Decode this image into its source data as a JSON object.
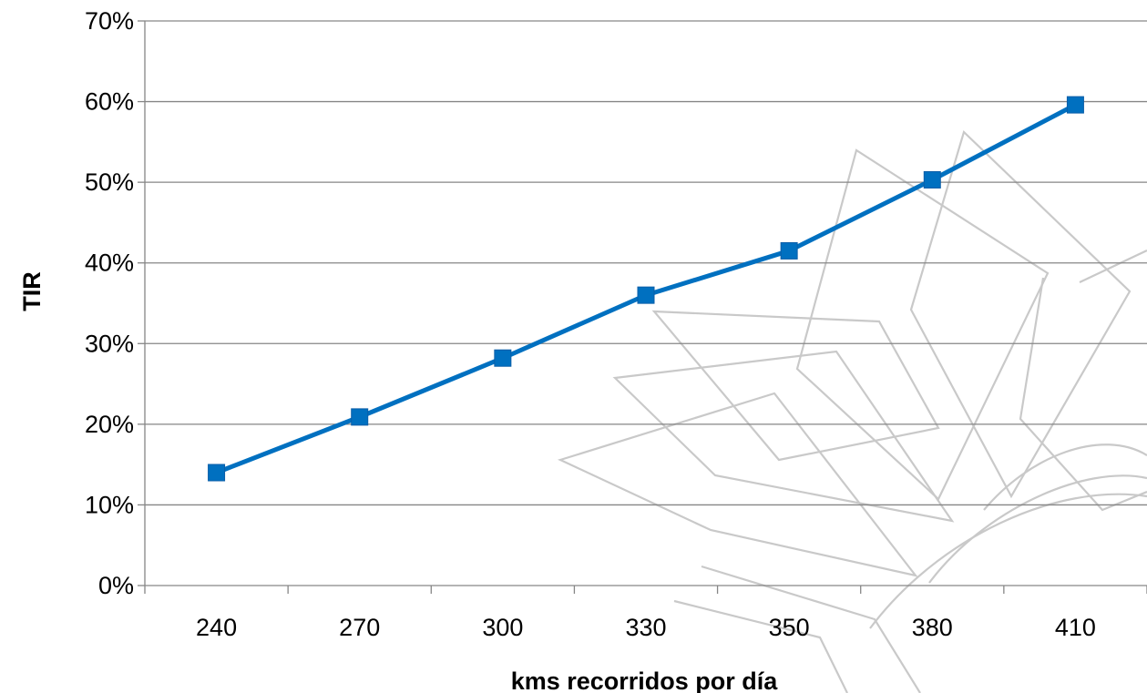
{
  "chart_data": {
    "type": "line",
    "title": "",
    "xlabel": "kms recorridos por día",
    "ylabel": "TIR",
    "categories": [
      "240",
      "270",
      "300",
      "330",
      "350",
      "380",
      "410"
    ],
    "series": [
      {
        "values": [
          0.14,
          0.209,
          0.282,
          0.36,
          0.415,
          0.503,
          0.596
        ]
      }
    ],
    "ylim": [
      0,
      0.7
    ],
    "yticks": [
      0,
      0.1,
      0.2,
      0.3,
      0.4,
      0.5,
      0.6,
      0.7
    ],
    "ytick_labels": [
      "0%",
      "10%",
      "20%",
      "30%",
      "40%",
      "50%",
      "60%",
      "70%"
    ],
    "grid": true,
    "legend": "none",
    "colors": {
      "series": "#0070C0",
      "grid": "#868686"
    },
    "marker": "square"
  }
}
